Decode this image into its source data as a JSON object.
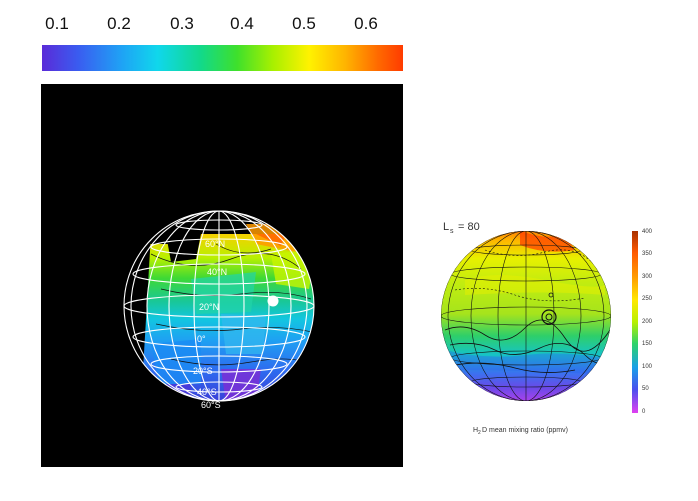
{
  "colorbar": {
    "ticks": [
      "0.1",
      "0.2",
      "0.3",
      "0.4",
      "0.5",
      "0.6"
    ]
  },
  "left_globe": {
    "latitude_labels": [
      "60°S",
      "40°S",
      "20°S",
      "0°",
      "20°N",
      "40°N",
      "60°N"
    ],
    "marker": "white dot"
  },
  "right_globe": {
    "ls_label": "L",
    "ls_subscript": "s",
    "ls_value": "= 80",
    "caption_prefix": "H",
    "caption_subscript": "2",
    "caption_suffix": "D mean mixing ratio (ppmv)",
    "scale_ticks": [
      "400",
      "350",
      "300",
      "250",
      "200",
      "150",
      "100",
      "50",
      "0"
    ]
  },
  "colors": {
    "background": "#ffffff",
    "left_panel": "#000000",
    "marker": "#ffffff"
  }
}
